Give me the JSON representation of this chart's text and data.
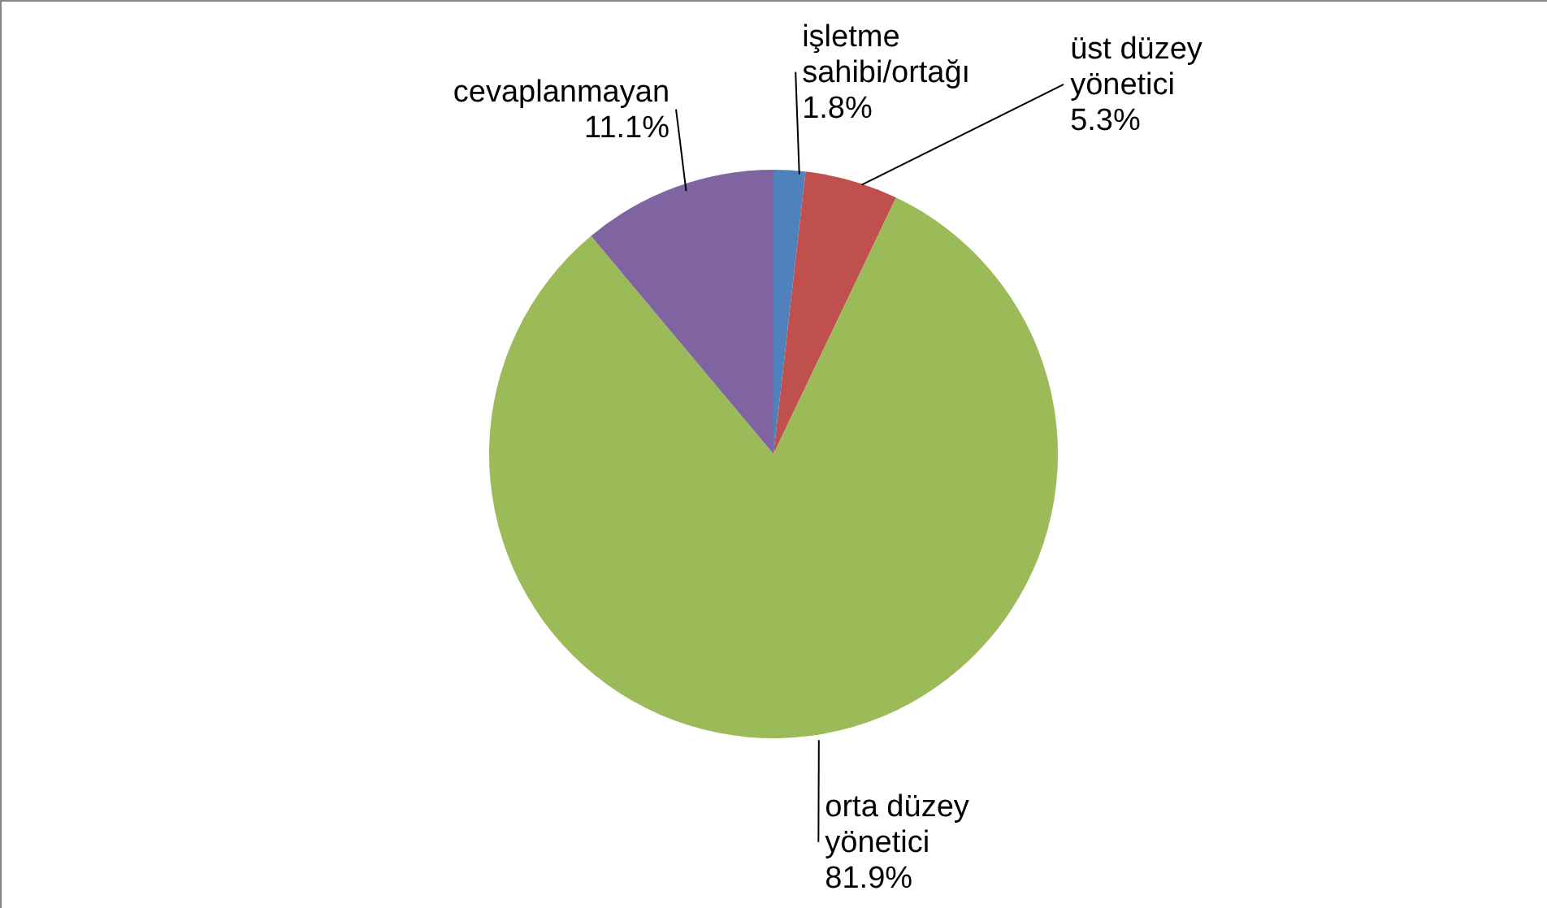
{
  "chart_data": {
    "type": "pie",
    "categories": [
      "işletme\nsahibi/ortağı",
      "üst düzey\nyönetici",
      "orta düzey\nyönetici",
      "cevaplanmayan"
    ],
    "values": [
      1.8,
      5.3,
      81.9,
      11.1
    ],
    "value_labels": [
      "1.8%",
      "5.3%",
      "81.9%",
      "11.1%"
    ],
    "colors": [
      "#4f81bd",
      "#c0504d",
      "#9bbb59",
      "#8064a2"
    ]
  }
}
